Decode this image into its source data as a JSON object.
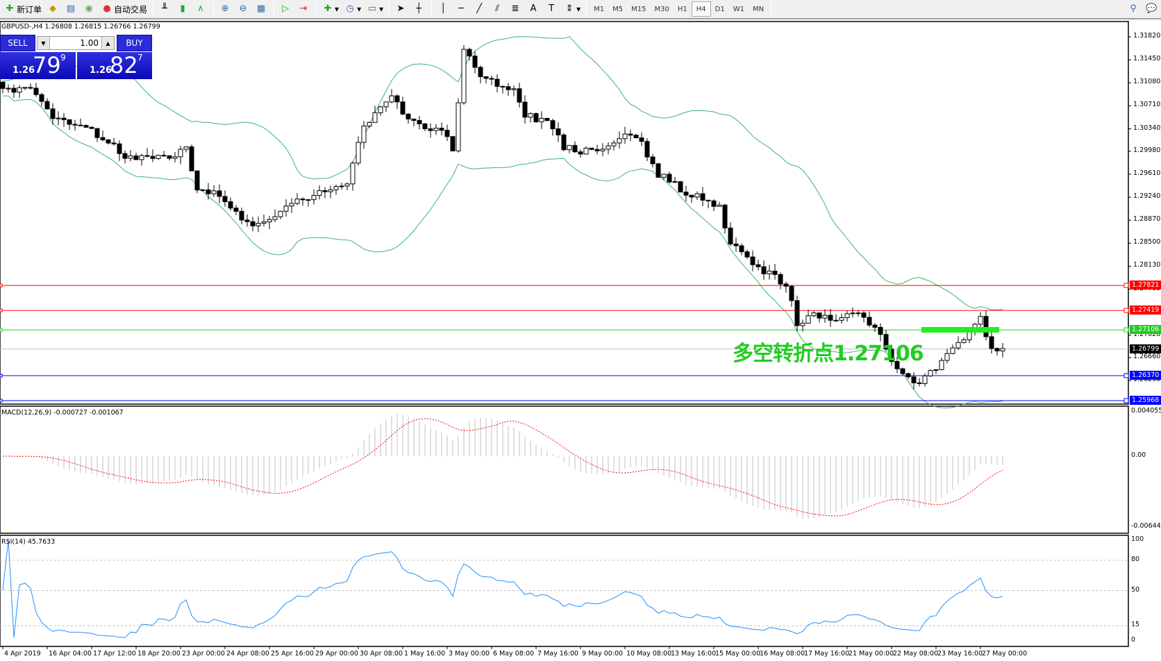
{
  "toolbar": {
    "new_order": "新订单",
    "auto_trading": "自动交易",
    "timeframes": [
      "M1",
      "M5",
      "M15",
      "M30",
      "H1",
      "H4",
      "D1",
      "W1",
      "MN"
    ],
    "active_timeframe": "H4"
  },
  "chart": {
    "symbol_line": "GBPUSD-,H4  1.26808 1.26815 1.26766 1.26799",
    "price_axis": [
      "1.31820",
      "1.31450",
      "1.31080",
      "1.30710",
      "1.30340",
      "1.29980",
      "1.29610",
      "1.29240",
      "1.28870",
      "1.28500",
      "1.28130",
      "1.27760",
      "1.27020",
      "1.26660",
      "1.26290"
    ],
    "lines": [
      {
        "price": "1.27821",
        "color": "#ff0000"
      },
      {
        "price": "1.27419",
        "color": "#ff0000"
      },
      {
        "price": "1.27106",
        "color": "#22cc22"
      },
      {
        "price": "1.26799",
        "color": "#000000",
        "current": true
      },
      {
        "price": "1.26370",
        "color": "#0000ff"
      },
      {
        "price": "1.25968",
        "color": "#0000ff"
      }
    ],
    "annotation": "多空转折点1.27106",
    "close_anchors": [
      [
        0,
        1.3093
      ],
      [
        5,
        1.3099
      ],
      [
        9,
        1.3051
      ],
      [
        15,
        1.3039
      ],
      [
        22,
        1.2991
      ],
      [
        30,
        1.2985
      ],
      [
        33,
        1.3003
      ],
      [
        35,
        1.2938
      ],
      [
        39,
        1.2926
      ],
      [
        41,
        1.2902
      ],
      [
        45,
        1.2878
      ],
      [
        51,
        1.2908
      ],
      [
        57,
        1.2932
      ],
      [
        62,
        1.2944
      ],
      [
        65,
        1.3039
      ],
      [
        70,
        1.3087
      ],
      [
        73,
        1.3051
      ],
      [
        76,
        1.3033
      ],
      [
        79,
        1.3033
      ],
      [
        81,
        1.3003
      ],
      [
        83,
        1.3158
      ],
      [
        87,
        1.311
      ],
      [
        92,
        1.3099
      ],
      [
        94,
        1.3057
      ],
      [
        99,
        1.3039
      ],
      [
        101,
        1.3003
      ],
      [
        105,
        1.2997
      ],
      [
        110,
        1.3009
      ],
      [
        113,
        1.3027
      ],
      [
        115,
        1.3009
      ],
      [
        118,
        1.2962
      ],
      [
        123,
        1.2932
      ],
      [
        129,
        1.2908
      ],
      [
        131,
        1.2848
      ],
      [
        135,
        1.2818
      ],
      [
        141,
        1.2783
      ],
      [
        143,
        1.2723
      ],
      [
        147,
        1.2735
      ],
      [
        150,
        1.2723
      ],
      [
        154,
        1.2741
      ],
      [
        158,
        1.2705
      ],
      [
        160,
        1.2657
      ],
      [
        165,
        1.2622
      ],
      [
        169,
        1.2657
      ],
      [
        173,
        1.2699
      ],
      [
        176,
        1.2729
      ],
      [
        178,
        1.2681
      ],
      [
        180,
        1.268
      ]
    ]
  },
  "trade_panel": {
    "sell": "SELL",
    "buy": "BUY",
    "lot": "1.00",
    "bid": {
      "prefix": "1.26",
      "big": "79",
      "sup": "9"
    },
    "ask": {
      "prefix": "1.26",
      "big": "82",
      "sup": "7"
    }
  },
  "macd": {
    "label": "MACD(12,26,9) -0.000727 -0.001067",
    "axis": [
      "0.004055",
      "0.00",
      "-0.006442"
    ]
  },
  "rsi": {
    "label": "RSI(14) 45.7633",
    "axis": [
      "100",
      "80",
      "50",
      "15",
      "0"
    ]
  },
  "time_axis": [
    "4 Apr 2019",
    "16 Apr 04:00",
    "17 Apr 12:00",
    "18 Apr 20:00",
    "23 Apr 00:00",
    "24 Apr 08:00",
    "25 Apr 16:00",
    "29 Apr 00:00",
    "30 Apr 08:00",
    "1 May 16:00",
    "3 May 00:00",
    "6 May 08:00",
    "7 May 16:00",
    "9 May 00:00",
    "10 May 08:00",
    "13 May 16:00",
    "15 May 00:00",
    "16 May 08:00",
    "17 May 16:00",
    "21 May 00:00",
    "22 May 08:00",
    "23 May 16:00",
    "27 May 00:00"
  ],
  "colors": {
    "bands": "#3cb371",
    "macd_signal": "#ff0000",
    "macd_hist": "#c0c0c0",
    "rsi": "#1e90ff"
  }
}
